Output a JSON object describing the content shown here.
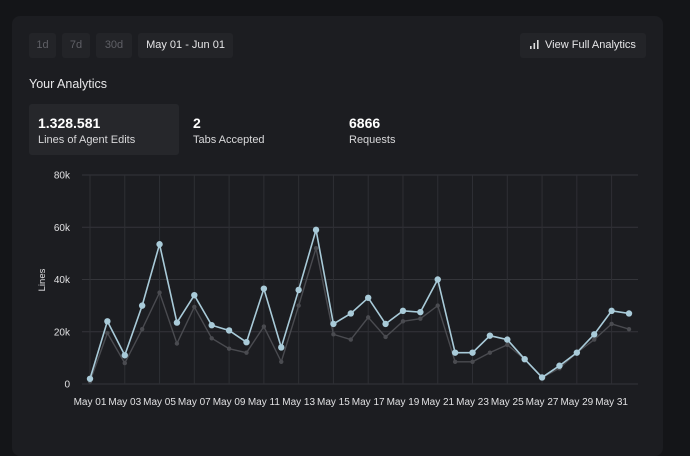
{
  "range_buttons": [
    "1d",
    "7d",
    "30d"
  ],
  "date_range": "May 01 - Jun 01",
  "view_full_label": "View Full Analytics",
  "section_title": "Your Analytics",
  "stats": [
    {
      "value": "1.328.581",
      "label": "Lines of Agent Edits"
    },
    {
      "value": "2",
      "label": "Tabs Accepted"
    },
    {
      "value": "6866",
      "label": "Requests"
    }
  ],
  "colors": {
    "primary": "#a9cbd9",
    "secondary": "#4a4b50"
  },
  "chart_data": {
    "type": "line",
    "ylabel": "Lines",
    "ylim": [
      0,
      80000
    ],
    "yticks": [
      0,
      20000,
      40000,
      60000,
      80000
    ],
    "ytick_labels": [
      "0",
      "20k",
      "40k",
      "60k",
      "80k"
    ],
    "xtick_labels": [
      "May 01",
      "May 03",
      "May 05",
      "May 07",
      "May 09",
      "May 11",
      "May 13",
      "May 15",
      "May 17",
      "May 19",
      "May 21",
      "May 23",
      "May 25",
      "May 27",
      "May 29",
      "May 31"
    ],
    "x": [
      "May 01",
      "May 02",
      "May 03",
      "May 04",
      "May 05",
      "May 06",
      "May 07",
      "May 08",
      "May 09",
      "May 10",
      "May 11",
      "May 12",
      "May 13",
      "May 14",
      "May 15",
      "May 16",
      "May 17",
      "May 18",
      "May 19",
      "May 20",
      "May 21",
      "May 22",
      "May 23",
      "May 24",
      "May 25",
      "May 26",
      "May 27",
      "May 28",
      "May 29",
      "May 30",
      "May 31",
      "Jun 01"
    ],
    "series": [
      {
        "name": "primary",
        "values": [
          2000,
          24000,
          11000,
          30000,
          53500,
          23500,
          34000,
          22500,
          20500,
          16000,
          36500,
          14000,
          36000,
          59000,
          23000,
          27000,
          33000,
          23000,
          28000,
          27500,
          40000,
          12000,
          12000,
          18500,
          17000,
          9500,
          2500,
          7000,
          12000,
          19000,
          28000,
          27000
        ]
      },
      {
        "name": "secondary",
        "values": [
          1000,
          19500,
          8000,
          21000,
          35000,
          15500,
          29500,
          17500,
          13500,
          12000,
          22000,
          8500,
          30000,
          52000,
          19000,
          17000,
          25500,
          18000,
          24000,
          25000,
          30000,
          8500,
          8500,
          12000,
          15000,
          9500,
          2500,
          6000,
          12000,
          17000,
          23000,
          21000
        ]
      }
    ]
  }
}
